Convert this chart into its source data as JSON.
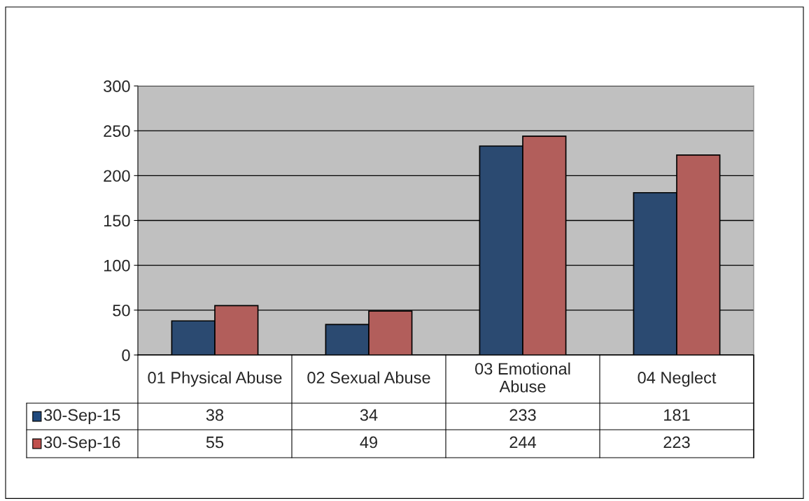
{
  "chart_data": {
    "type": "bar",
    "categories": [
      "01 Physical Abuse",
      "02 Sexual Abuse",
      "03 Emotional Abuse",
      "04 Neglect"
    ],
    "series": [
      {
        "name": "30-Sep-15",
        "color": "#1f497d",
        "values": [
          38,
          34,
          233,
          181
        ]
      },
      {
        "name": "30-Sep-16",
        "color": "#c0504d",
        "values": [
          55,
          49,
          244,
          223
        ]
      }
    ],
    "ylim": [
      0,
      300
    ],
    "yticks": [
      0,
      50,
      100,
      150,
      200,
      250,
      300
    ],
    "grid": "y",
    "data_labels": true,
    "legend": "bottom left"
  }
}
